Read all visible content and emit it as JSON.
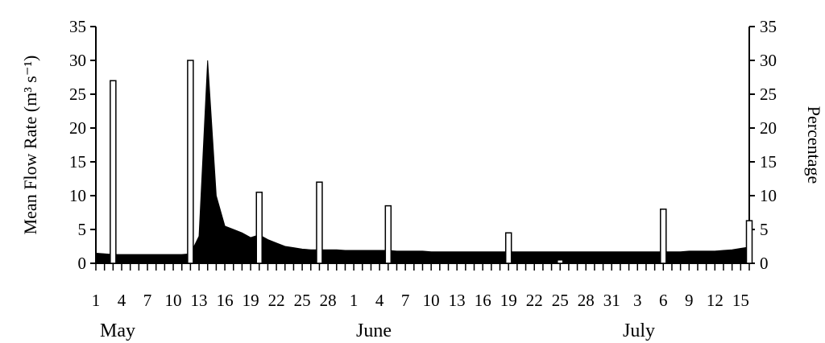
{
  "chart_data": {
    "type": "area",
    "ylabel_left": "Mean Flow Rate  (m³ s⁻¹)",
    "ylabel_right": "Percentage",
    "left_ylim": [
      0,
      35
    ],
    "right_ylim": [
      0,
      35
    ],
    "left_yticks": [
      "0",
      "5",
      "10",
      "15",
      "20",
      "25",
      "30",
      "35"
    ],
    "right_yticks": [
      "0",
      "5",
      "10",
      "15",
      "20",
      "25",
      "30",
      "35"
    ],
    "x_tick_labels": [
      "1",
      "4",
      "7",
      "10",
      "13",
      "16",
      "19",
      "22",
      "25",
      "28",
      "1",
      "4",
      "7",
      "10",
      "13",
      "16",
      "19",
      "22",
      "25",
      "28",
      "31",
      "3",
      "6",
      "9",
      "12",
      "15"
    ],
    "months": [
      "May",
      "June",
      "July"
    ],
    "flow_series": {
      "axis": "left",
      "x": [
        "May 1",
        "May 2",
        "May 3",
        "May 4",
        "May 5",
        "May 6",
        "May 7",
        "May 8",
        "May 9",
        "May 10",
        "May 11",
        "May 12",
        "May 13",
        "May 14",
        "May 15",
        "May 16",
        "May 17",
        "May 18",
        "May 19",
        "May 20",
        "May 21",
        "May 22",
        "May 23",
        "May 24",
        "May 25",
        "May 26",
        "May 27",
        "May 28",
        "May 29",
        "May 30",
        "May 31",
        "Jun 1",
        "Jun 2",
        "Jun 3",
        "Jun 4",
        "Jun 5",
        "Jun 6",
        "Jun 7",
        "Jun 8",
        "Jun 9",
        "Jun 10",
        "Jun 11",
        "Jun 12",
        "Jun 13",
        "Jun 14",
        "Jun 15",
        "Jun 16",
        "Jun 17",
        "Jun 18",
        "Jun 19",
        "Jun 20",
        "Jun 21",
        "Jun 22",
        "Jun 23",
        "Jun 24",
        "Jun 25",
        "Jun 26",
        "Jun 27",
        "Jun 28",
        "Jun 29",
        "Jun 30",
        "Jul 1",
        "Jul 2",
        "Jul 3",
        "Jul 4",
        "Jul 5",
        "Jul 6",
        "Jul 7",
        "Jul 8",
        "Jul 9",
        "Jul 10",
        "Jul 11",
        "Jul 12",
        "Jul 13",
        "Jul 14",
        "Jul 15",
        "Jul 16"
      ],
      "values": [
        1.5,
        1.4,
        1.3,
        1.3,
        1.3,
        1.3,
        1.3,
        1.3,
        1.3,
        1.3,
        1.3,
        1.4,
        4,
        30,
        10,
        5.5,
        5,
        4.5,
        3.8,
        4.2,
        3.5,
        3,
        2.5,
        2.3,
        2.1,
        2.0,
        2.0,
        2.0,
        2.0,
        1.9,
        1.9,
        1.9,
        1.9,
        1.9,
        1.9,
        1.8,
        1.8,
        1.8,
        1.8,
        1.7,
        1.7,
        1.7,
        1.7,
        1.7,
        1.7,
        1.7,
        1.7,
        1.7,
        1.7,
        1.7,
        1.7,
        1.7,
        1.7,
        1.7,
        1.7,
        1.7,
        1.7,
        1.7,
        1.7,
        1.7,
        1.7,
        1.7,
        1.7,
        1.7,
        1.7,
        1.7,
        1.7,
        1.7,
        1.7,
        1.8,
        1.8,
        1.8,
        1.8,
        1.9,
        2.0,
        2.2,
        2.4
      ],
      "color": "#000000"
    },
    "percentage_bars": {
      "axis": "right",
      "x": [
        "May 3",
        "May 12",
        "May 20",
        "May 27",
        "Jun 4",
        "Jun 18",
        "Jun 24",
        "Jul 6",
        "Jul 16"
      ],
      "values": [
        27,
        30,
        10.5,
        12,
        8.5,
        4.5,
        0.5,
        8,
        6.3
      ],
      "color": "#ffffff"
    }
  }
}
